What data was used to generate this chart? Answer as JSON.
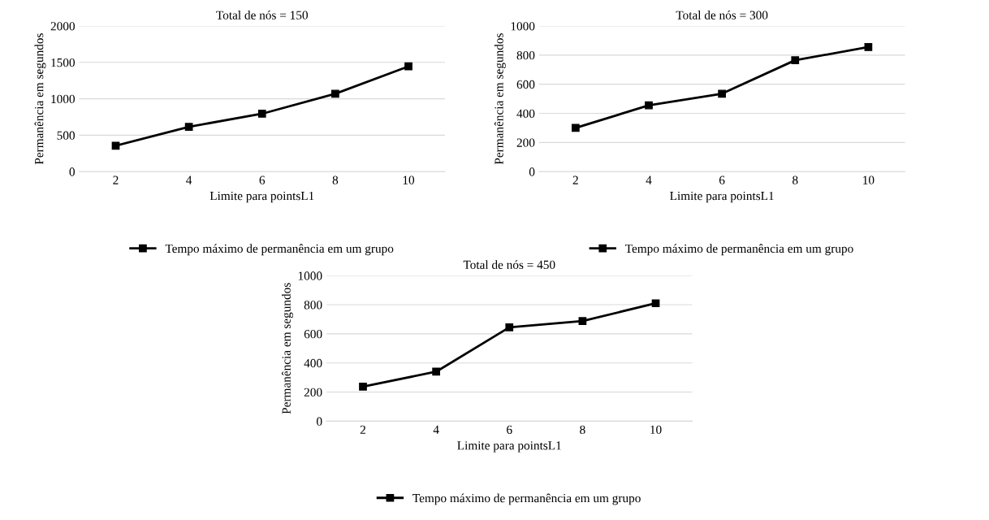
{
  "chart_data": [
    {
      "type": "line",
      "title": "Total de nós = 150",
      "xlabel": "Limite para pointsL1",
      "ylabel": "Permanência em segundos",
      "categories": [
        "2",
        "4",
        "6",
        "8",
        "10"
      ],
      "series": [
        {
          "name": "Tempo máximo de permanência em um grupo",
          "color": "#000000",
          "values": [
            355,
            615,
            795,
            1070,
            1445
          ]
        }
      ],
      "ylim": [
        0,
        2000
      ],
      "yticks": [
        0,
        500,
        1000,
        1500,
        2000
      ],
      "grid": "y",
      "legend": "bottom",
      "marker": "square",
      "line_style": "solid"
    },
    {
      "type": "line",
      "title": "Total de nós = 300",
      "xlabel": "Limite para pointsL1",
      "ylabel": "Permanência em segundos",
      "categories": [
        "2",
        "4",
        "6",
        "8",
        "10"
      ],
      "series": [
        {
          "name": "Tempo máximo de permanência em um grupo",
          "color": "#000000",
          "values": [
            300,
            455,
            535,
            765,
            855
          ]
        }
      ],
      "ylim": [
        0,
        1000
      ],
      "yticks": [
        0,
        200,
        400,
        600,
        800,
        1000
      ],
      "grid": "y",
      "legend": "bottom",
      "marker": "square",
      "line_style": "solid"
    },
    {
      "type": "line",
      "title": "Total de nós = 450",
      "xlabel": "Limite para pointsL1",
      "ylabel": "Permanência em segundos",
      "categories": [
        "2",
        "4",
        "6",
        "8",
        "10"
      ],
      "series": [
        {
          "name": "Tempo máximo de permanência em um grupo",
          "color": "#000000",
          "values": [
            237,
            340,
            645,
            688,
            810
          ]
        }
      ],
      "ylim": [
        0,
        1000
      ],
      "yticks": [
        0,
        200,
        400,
        600,
        800,
        1000
      ],
      "grid": "y",
      "legend": "bottom",
      "marker": "square",
      "line_style": "solid"
    }
  ]
}
